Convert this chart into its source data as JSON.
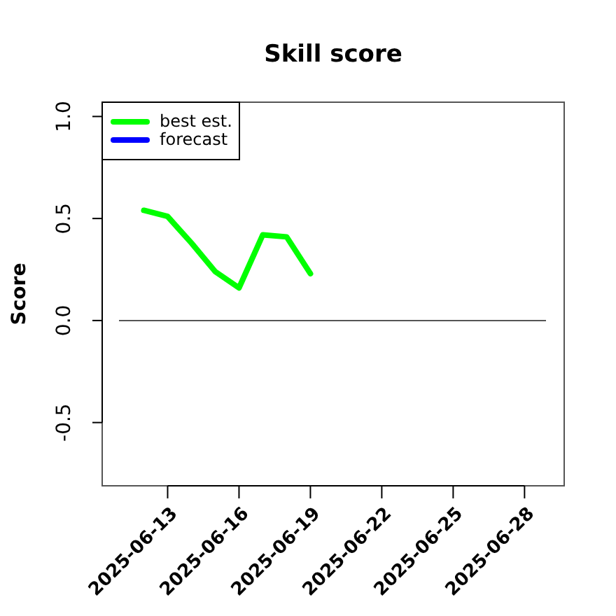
{
  "chart_data": {
    "type": "line",
    "title": "Skill score",
    "ylabel": "Score",
    "x": [
      "2025-06-12",
      "2025-06-13",
      "2025-06-14",
      "2025-06-15",
      "2025-06-16",
      "2025-06-17",
      "2025-06-18",
      "2025-06-19"
    ],
    "series": [
      {
        "name": "best est.",
        "color": "#00ff00",
        "values": [
          0.54,
          0.51,
          0.38,
          0.24,
          0.16,
          0.42,
          0.41,
          0.23
        ]
      },
      {
        "name": "forecast",
        "color": "#0000ff",
        "values": [
          null,
          null,
          null,
          null,
          null,
          null,
          null,
          null
        ]
      }
    ],
    "xlim": [
      "2025-06-10T06:00",
      "2025-06-29T16:00"
    ],
    "xticks": [
      {
        "value": "2025-06-13",
        "label": "2025-06-13"
      },
      {
        "value": "2025-06-16",
        "label": "2025-06-16"
      },
      {
        "value": "2025-06-19",
        "label": "2025-06-19"
      },
      {
        "value": "2025-06-22",
        "label": "2025-06-22"
      },
      {
        "value": "2025-06-25",
        "label": "2025-06-25"
      },
      {
        "value": "2025-06-28",
        "label": "2025-06-28"
      }
    ],
    "ylim": [
      -0.81,
      1.07
    ],
    "yticks": [
      {
        "value": -0.5,
        "label": "-0.5"
      },
      {
        "value": 0,
        "label": "0.0"
      },
      {
        "value": 0.5,
        "label": "0.5"
      },
      {
        "value": 1,
        "label": "1.0"
      }
    ],
    "ref_lines": [
      {
        "axis": "y",
        "value": 0,
        "color": "#555555"
      }
    ],
    "legend": "top left",
    "grid": false,
    "line_style": "solid",
    "marker": "none"
  }
}
